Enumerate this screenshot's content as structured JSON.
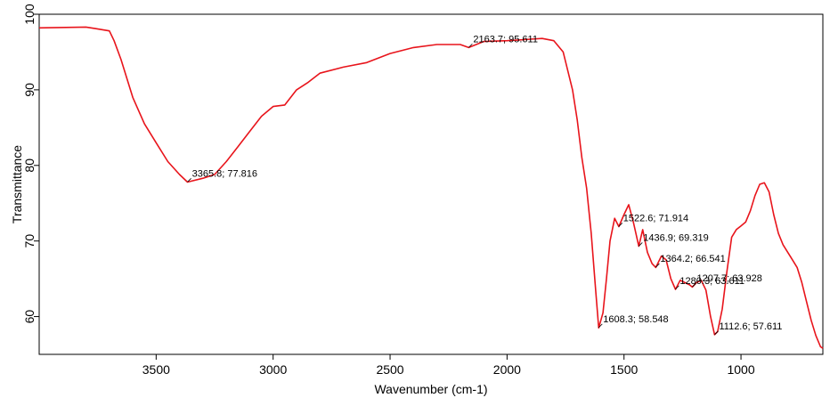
{
  "chart_data": {
    "type": "line",
    "xlabel": "Wavenumber (cm-1)",
    "ylabel": "Transmittance",
    "xlim": [
      4000,
      650
    ],
    "ylim": [
      55,
      100
    ],
    "x_reversed": true,
    "grid": false,
    "x_ticks": [
      3500,
      3000,
      2500,
      2000,
      1500,
      1000
    ],
    "x_tick_labels": [
      "3500",
      "3000",
      "2500",
      "2000",
      "1500",
      "1000"
    ],
    "y_ticks": [
      60,
      70,
      80,
      90,
      100
    ],
    "y_tick_labels": [
      "60",
      "70",
      "80",
      "90",
      "100"
    ],
    "series": [
      {
        "color": "#e8141b",
        "points": [
          [
            4000,
            98.2
          ],
          [
            3800,
            98.3
          ],
          [
            3760,
            98.1
          ],
          [
            3700,
            97.8
          ],
          [
            3680,
            96.5
          ],
          [
            3650,
            94.0
          ],
          [
            3600,
            89.0
          ],
          [
            3550,
            85.5
          ],
          [
            3500,
            83.0
          ],
          [
            3450,
            80.5
          ],
          [
            3400,
            78.8
          ],
          [
            3366,
            77.8
          ],
          [
            3300,
            78.3
          ],
          [
            3250,
            78.8
          ],
          [
            3200,
            80.5
          ],
          [
            3150,
            82.5
          ],
          [
            3100,
            84.5
          ],
          [
            3050,
            86.5
          ],
          [
            3000,
            87.8
          ],
          [
            2950,
            88.0
          ],
          [
            2900,
            90.0
          ],
          [
            2850,
            91.0
          ],
          [
            2800,
            92.2
          ],
          [
            2700,
            93.0
          ],
          [
            2600,
            93.6
          ],
          [
            2500,
            94.8
          ],
          [
            2400,
            95.6
          ],
          [
            2300,
            96.0
          ],
          [
            2200,
            96.0
          ],
          [
            2164,
            95.6
          ],
          [
            2100,
            96.4
          ],
          [
            2000,
            96.5
          ],
          [
            1950,
            96.6
          ],
          [
            1900,
            96.7
          ],
          [
            1850,
            96.8
          ],
          [
            1800,
            96.5
          ],
          [
            1760,
            95.0
          ],
          [
            1720,
            90.0
          ],
          [
            1700,
            86.0
          ],
          [
            1680,
            81.0
          ],
          [
            1660,
            77.0
          ],
          [
            1640,
            71.0
          ],
          [
            1620,
            63.0
          ],
          [
            1608,
            58.5
          ],
          [
            1590,
            60.5
          ],
          [
            1575,
            65.0
          ],
          [
            1560,
            70.0
          ],
          [
            1540,
            73.0
          ],
          [
            1522,
            71.9
          ],
          [
            1500,
            73.5
          ],
          [
            1480,
            74.8
          ],
          [
            1460,
            72.5
          ],
          [
            1437,
            69.3
          ],
          [
            1420,
            71.5
          ],
          [
            1400,
            68.5
          ],
          [
            1380,
            67.0
          ],
          [
            1364,
            66.5
          ],
          [
            1340,
            68.0
          ],
          [
            1320,
            67.5
          ],
          [
            1300,
            65.0
          ],
          [
            1280,
            63.6
          ],
          [
            1260,
            64.8
          ],
          [
            1240,
            64.5
          ],
          [
            1220,
            64.2
          ],
          [
            1208,
            63.9
          ],
          [
            1190,
            64.5
          ],
          [
            1170,
            64.8
          ],
          [
            1150,
            63.5
          ],
          [
            1130,
            60.0
          ],
          [
            1113,
            57.6
          ],
          [
            1100,
            58.0
          ],
          [
            1080,
            61.0
          ],
          [
            1060,
            66.0
          ],
          [
            1040,
            70.5
          ],
          [
            1020,
            71.5
          ],
          [
            1000,
            72.0
          ],
          [
            980,
            72.5
          ],
          [
            960,
            74.0
          ],
          [
            940,
            76.0
          ],
          [
            920,
            77.5
          ],
          [
            900,
            77.7
          ],
          [
            880,
            76.5
          ],
          [
            860,
            73.5
          ],
          [
            840,
            71.0
          ],
          [
            820,
            69.5
          ],
          [
            800,
            68.5
          ],
          [
            780,
            67.5
          ],
          [
            760,
            66.5
          ],
          [
            740,
            64.5
          ],
          [
            720,
            62.0
          ],
          [
            700,
            59.5
          ],
          [
            680,
            57.5
          ],
          [
            660,
            56.0
          ],
          [
            650,
            55.8
          ]
        ]
      }
    ],
    "annotations": [
      {
        "x": 3365.8,
        "y": 77.816,
        "text": "3365.8; 77.816"
      },
      {
        "x": 2163.7,
        "y": 95.611,
        "text": "2163.7; 95.611"
      },
      {
        "x": 1608.3,
        "y": 58.548,
        "text": "1608.3; 58.548"
      },
      {
        "x": 1522.6,
        "y": 71.914,
        "text": "1522.6; 71.914"
      },
      {
        "x": 1436.9,
        "y": 69.319,
        "text": "1436.9; 69.319"
      },
      {
        "x": 1364.2,
        "y": 66.541,
        "text": "1364.2; 66.541"
      },
      {
        "x": 1280.3,
        "y": 63.611,
        "text": "1280.3; 63.611"
      },
      {
        "x": 1207.7,
        "y": 63.928,
        "text": "1207.7; 63.928"
      },
      {
        "x": 1112.6,
        "y": 57.611,
        "text": "1112.6; 57.611"
      }
    ]
  }
}
